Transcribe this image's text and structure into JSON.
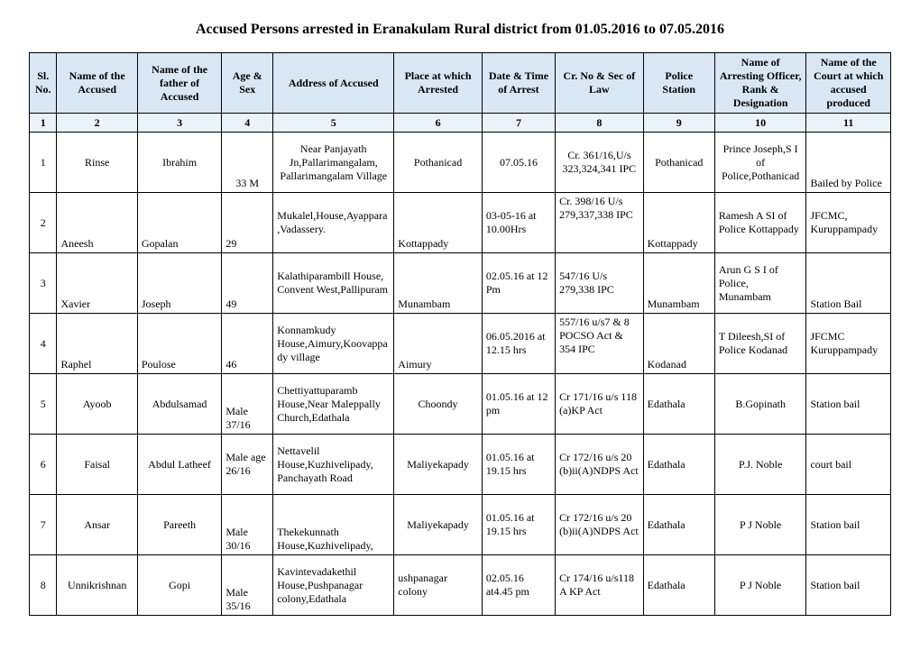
{
  "title": "Accused Persons arrested in   Eranakulam Rural   district from   01.05.2016 to 07.05.2016",
  "headers": [
    "Sl. No.",
    "Name of the Accused",
    "Name of the father of Accused",
    "Age & Sex",
    "Address of Accused",
    "Place at which Arrested",
    "Date & Time of Arrest",
    "Cr. No & Sec of Law",
    "Police Station",
    "Name of Arresting Officer, Rank & Designation",
    "Name of the Court at which accused produced"
  ],
  "numrow": [
    "1",
    "2",
    "3",
    "4",
    "5",
    "6",
    "7",
    "8",
    "9",
    "10",
    "11"
  ],
  "rows": [
    {
      "sl": "1",
      "name": "Rinse",
      "father": "Ibrahim",
      "age": "33 M",
      "addr": "Near Panjayath Jn,Pallarimangalam, Pallarimangalam Village",
      "place": "Pothanicad",
      "dt": "07.05.16",
      "cr": "Cr. 361/16,U/s 323,324,341 IPC",
      "ps": "Pothanicad",
      "off": "Prince Joseph,S I of Police,Pothanicad",
      "court": "Bailed by Police"
    },
    {
      "sl": "2",
      "name": "Aneesh",
      "father": "Gopalan",
      "age": "29",
      "addr": "Mukalel,House,Ayappara,Vadassery.",
      "place": "Kottappady",
      "dt": "03-05-16 at 10.00Hrs",
      "cr": "Cr. 398/16 U/s 279,337,338 IPC",
      "ps": "Kottappady",
      "off": "Ramesh A SI of Police Kottappady",
      "court": "JFCMC, Kuruppampady"
    },
    {
      "sl": "3",
      "name": "Xavier",
      "father": "Joseph",
      "age": "49",
      "addr": "Kalathiparambill House, Convent West,Pallipuram",
      "place": "Munambam",
      "dt": "02.05.16 at 12 Pm",
      "cr": "547/16 U/s 279,338 IPC",
      "ps": "Munambam",
      "off": "Arun G  S I of Police, Munambam",
      "court": "Station Bail"
    },
    {
      "sl": "4",
      "name": "Raphel",
      "father": "Poulose",
      "age": "46",
      "addr": "Konnamkudy House,Aimury,Koovappady village",
      "place": "Aimury",
      "dt": "06.05.2016 at  12.15 hrs",
      "cr": "557/16 u/s7 & 8 POCSO Act & 354 IPC",
      "ps": "Kodanad",
      "off": "T Dileesh,SI of Police Kodanad",
      "court": "JFCMC Kuruppampady"
    },
    {
      "sl": "5",
      "name": "Ayoob",
      "father": "Abdulsamad",
      "age": "Male 37/16",
      "addr": "Chettiyattuparamb House,Near Maleppally Church,Edathala",
      "place": "Choondy",
      "dt": "01.05.16 at 12 pm",
      "cr": "Cr 171/16 u/s 118 (a)KP Act",
      "ps": "Edathala",
      "off": "B.Gopinath",
      "court": "Station bail"
    },
    {
      "sl": "6",
      "name": "Faisal",
      "father": "Abdul Latheef",
      "age": "Male age 26/16",
      "addr": "Nettavelil House,Kuzhivelipady, Panchayath Road",
      "place": "Maliyekapady",
      "dt": "01.05.16 at 19.15 hrs",
      "cr": "Cr 172/16 u/s 20 (b)ii(A)NDPS Act",
      "ps": "Edathala",
      "off": "P.J. Noble",
      "court": "court  bail"
    },
    {
      "sl": "7",
      "name": "Ansar",
      "father": "Pareeth",
      "age": "Male 30/16",
      "addr": "Thekekunnath House,Kuzhivelipady,",
      "place": "Maliyekapady",
      "dt": "01.05.16 at 19.15 hrs",
      "cr": "Cr 172/16 u/s 20 (b)ii(A)NDPS Act",
      "ps": "Edathala",
      "off": "P J Noble",
      "court": "Station bail"
    },
    {
      "sl": "8",
      "name": "Unnikrishnan",
      "father": "Gopi",
      "age": "Male 35/16",
      "addr": "Kavintevadakethil House,Pushpanagar colony,Edathala",
      "place": "ushpanagar colony",
      "dt": "02.05.16 at4.45 pm",
      "cr": "Cr 174/16 u/s118 A KP Act",
      "ps": "Edathala",
      "off": "P J Noble",
      "court": "Station bail"
    }
  ]
}
